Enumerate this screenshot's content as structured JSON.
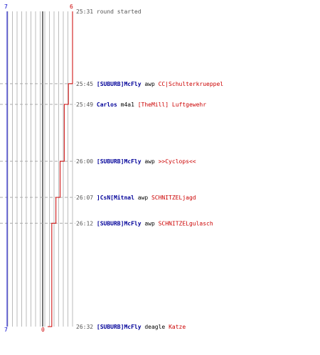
{
  "score": {
    "team_a": {
      "start": "7",
      "end": "7",
      "color": "#0000cc"
    },
    "team_b": {
      "start": "6",
      "end": "0",
      "color": "#cc0000"
    }
  },
  "colors": {
    "time": "#555555",
    "note": "#555555",
    "team_a": "#000099",
    "team_b": "#cc0000",
    "weapon": "#000000",
    "grid": "#bbbbbb",
    "center": "#777777",
    "dash": "#aaaaaa"
  },
  "events": [
    {
      "time": "25:31",
      "note": "round started",
      "red_level": 6
    },
    {
      "time": "25:45",
      "killer": "[SUBURB]McFly",
      "killer_team": "a",
      "weapon": "awp",
      "victim": "CC|Schulterkrueppel",
      "victim_team": "b",
      "red_level": 5
    },
    {
      "time": "25:49",
      "killer": "Carlos",
      "killer_team": "a",
      "weapon": "m4a1",
      "victim": "[TheMill] Luftgewehr",
      "victim_team": "b",
      "red_level": 4
    },
    {
      "time": "26:00",
      "killer": "[SUBURB]McFly",
      "killer_team": "a",
      "weapon": "awp",
      "victim": ">>Cyclops<<",
      "victim_team": "b",
      "red_level": 3
    },
    {
      "time": "26:07",
      "killer": "]CsN[Mitnal",
      "killer_team": "a",
      "weapon": "awp",
      "victim": "SCHNITZELjagd",
      "victim_team": "b",
      "red_level": 2
    },
    {
      "time": "26:12",
      "killer": "[SUBURB]McFly",
      "killer_team": "a",
      "weapon": "awp",
      "victim": "SCHNITZELgulasch",
      "victim_team": "b",
      "red_level": 1
    },
    {
      "time": "26:32",
      "killer": "[SUBURB]McFly",
      "killer_team": "a",
      "weapon": "deagle",
      "victim": "Katze",
      "victim_team": "b",
      "red_level": 0
    }
  ]
}
